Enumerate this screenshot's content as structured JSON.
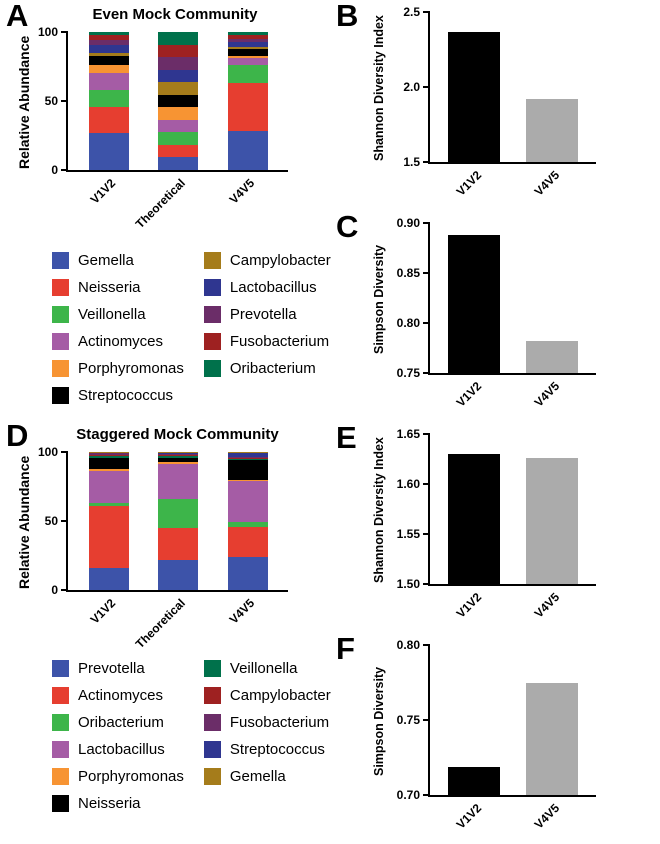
{
  "figure": {
    "background": "#ffffff",
    "condition_bar_colors": {
      "V1V2": "#000000",
      "V4V5": "#ABABAB"
    }
  },
  "chart_data": [
    {
      "id": "A",
      "type": "stacked-bar",
      "title": "Even Mock Community",
      "ylabel": "Relative Abundance",
      "ylim": [
        0,
        100
      ],
      "yticks": [
        "0",
        "50",
        "100"
      ],
      "categories": [
        "V1V2",
        "Theoretical",
        "V4V5"
      ],
      "series": [
        {
          "name": "Gemella",
          "color": "#3D53A9",
          "values": [
            27,
            9.09,
            28
          ]
        },
        {
          "name": "Neisseria",
          "color": "#E63E30",
          "values": [
            19,
            9.09,
            35
          ]
        },
        {
          "name": "Veillonella",
          "color": "#3DB54A",
          "values": [
            12,
            9.09,
            13
          ]
        },
        {
          "name": "Actinomyces",
          "color": "#A55CA5",
          "values": [
            12,
            9.09,
            5
          ]
        },
        {
          "name": "Porphyromonas",
          "color": "#F79433",
          "values": [
            6,
            9.09,
            2
          ]
        },
        {
          "name": "Streptococcus",
          "color": "#000000",
          "values": [
            7,
            9.09,
            5
          ]
        },
        {
          "name": "Campylobacter",
          "color": "#A57C1B",
          "values": [
            2,
            9.09,
            1
          ]
        },
        {
          "name": "Lactobacillus",
          "color": "#2F3690",
          "values": [
            6,
            9.09,
            4
          ]
        },
        {
          "name": "Prevotella",
          "color": "#6B2D68",
          "values": [
            3,
            9.09,
            2
          ]
        },
        {
          "name": "Fusobacterium",
          "color": "#9E2121",
          "values": [
            4,
            9.09,
            3
          ]
        },
        {
          "name": "Oribacterium",
          "color": "#00714B",
          "values": [
            2,
            9.09,
            2
          ]
        }
      ]
    },
    {
      "id": "B",
      "type": "bar",
      "title": "",
      "ylabel": "Shannon Diversity Index",
      "ylim": [
        1.5,
        2.5
      ],
      "yticks": [
        "1.5",
        "2.0",
        "2.5"
      ],
      "categories": [
        "V1V2",
        "V4V5"
      ],
      "values": [
        2.37,
        1.92
      ],
      "colors": [
        "#000000",
        "#ABABAB"
      ]
    },
    {
      "id": "C",
      "type": "bar",
      "title": "",
      "ylabel": "Simpson Diversity",
      "ylim": [
        0.75,
        0.9
      ],
      "yticks": [
        "0.75",
        "0.80",
        "0.85",
        "0.90"
      ],
      "categories": [
        "V1V2",
        "V4V5"
      ],
      "values": [
        0.888,
        0.782
      ],
      "colors": [
        "#000000",
        "#ABABAB"
      ]
    },
    {
      "id": "D",
      "type": "stacked-bar",
      "title": "Staggered Mock Community",
      "ylabel": "Relative Abundance",
      "ylim": [
        0,
        100
      ],
      "yticks": [
        "0",
        "50",
        "100"
      ],
      "categories": [
        "V1V2",
        "Theoretical",
        "V4V5"
      ],
      "series": [
        {
          "name": "Prevotella",
          "color": "#3D53A9",
          "values": [
            16,
            22,
            24
          ]
        },
        {
          "name": "Actinomyces",
          "color": "#E63E30",
          "values": [
            45,
            23,
            22
          ]
        },
        {
          "name": "Oribacterium",
          "color": "#3DB54A",
          "values": [
            2,
            21,
            3
          ]
        },
        {
          "name": "Lactobacillus",
          "color": "#A55CA5",
          "values": [
            23,
            25,
            30
          ]
        },
        {
          "name": "Porphyromonas",
          "color": "#F79433",
          "values": [
            2,
            2,
            1
          ]
        },
        {
          "name": "Neisseria",
          "color": "#000000",
          "values": [
            8,
            3,
            14
          ]
        },
        {
          "name": "Veillonella",
          "color": "#00714B",
          "values": [
            1,
            1,
            1
          ]
        },
        {
          "name": "Campylobacter",
          "color": "#9E2121",
          "values": [
            1,
            1,
            0.5
          ]
        },
        {
          "name": "Fusobacterium",
          "color": "#6B2D68",
          "values": [
            1,
            0.5,
            1
          ]
        },
        {
          "name": "Streptococcus",
          "color": "#2F3690",
          "values": [
            0.5,
            1,
            3
          ]
        },
        {
          "name": "Gemella",
          "color": "#A57C1B",
          "values": [
            0.5,
            0.5,
            0.5
          ]
        }
      ]
    },
    {
      "id": "E",
      "type": "bar",
      "title": "",
      "ylabel": "Shannon Diversity Index",
      "ylim": [
        1.5,
        1.65
      ],
      "yticks": [
        "1.50",
        "1.55",
        "1.60",
        "1.65"
      ],
      "categories": [
        "V1V2",
        "V4V5"
      ],
      "values": [
        1.63,
        1.626
      ],
      "colors": [
        "#000000",
        "#ABABAB"
      ]
    },
    {
      "id": "F",
      "type": "bar",
      "title": "",
      "ylabel": "Simpson Diversity",
      "ylim": [
        0.7,
        0.8
      ],
      "yticks": [
        "0.70",
        "0.75",
        "0.80"
      ],
      "categories": [
        "V1V2",
        "V4V5"
      ],
      "values": [
        0.719,
        0.775
      ],
      "colors": [
        "#000000",
        "#ABABAB"
      ]
    }
  ]
}
